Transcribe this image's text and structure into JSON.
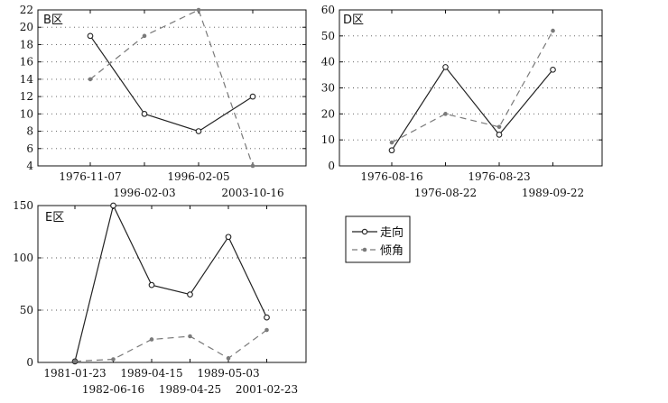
{
  "chart_data": [
    {
      "type": "line",
      "title": "B区",
      "categories": [
        "1976-11-07",
        "1996-02-03",
        "1996-02-05",
        "2003-10-16"
      ],
      "ylim": [
        4,
        22
      ],
      "yticks": [
        4,
        6,
        8,
        10,
        12,
        14,
        16,
        18,
        20,
        22
      ],
      "grid": true,
      "series": [
        {
          "name": "走向",
          "values": [
            19,
            10,
            8,
            12
          ]
        },
        {
          "name": "倾角",
          "values": [
            14,
            19,
            22,
            4
          ]
        }
      ]
    },
    {
      "type": "line",
      "title": "D区",
      "categories": [
        "1976-08-16",
        "1976-08-22",
        "1976-08-23",
        "1989-09-22"
      ],
      "ylim": [
        0,
        60
      ],
      "yticks": [
        0,
        10,
        20,
        30,
        40,
        50,
        60
      ],
      "grid": true,
      "series": [
        {
          "name": "走向",
          "values": [
            6,
            38,
            12,
            37
          ]
        },
        {
          "name": "倾角",
          "values": [
            9,
            20,
            15,
            52
          ]
        }
      ]
    },
    {
      "type": "line",
      "title": "E区",
      "categories": [
        "1981-01-23",
        "1982-06-16",
        "1989-04-15",
        "1989-04-25",
        "1989-05-03",
        "2001-02-23"
      ],
      "ylim": [
        0,
        150
      ],
      "yticks": [
        0,
        50,
        100,
        150
      ],
      "grid": true,
      "series": [
        {
          "name": "走向",
          "values": [
            1,
            150,
            74,
            65,
            120,
            43
          ]
        },
        {
          "name": "倾角",
          "values": [
            1,
            3,
            22,
            25,
            4,
            31
          ]
        }
      ]
    }
  ],
  "legend": {
    "items": [
      {
        "label": "走向",
        "style": "solid-circle"
      },
      {
        "label": "倾角",
        "style": "dashed-dot"
      }
    ]
  },
  "colors": {
    "line": "#222222",
    "dashed": "#7a7a7a",
    "grid": "#555555",
    "axis": "#111111"
  }
}
